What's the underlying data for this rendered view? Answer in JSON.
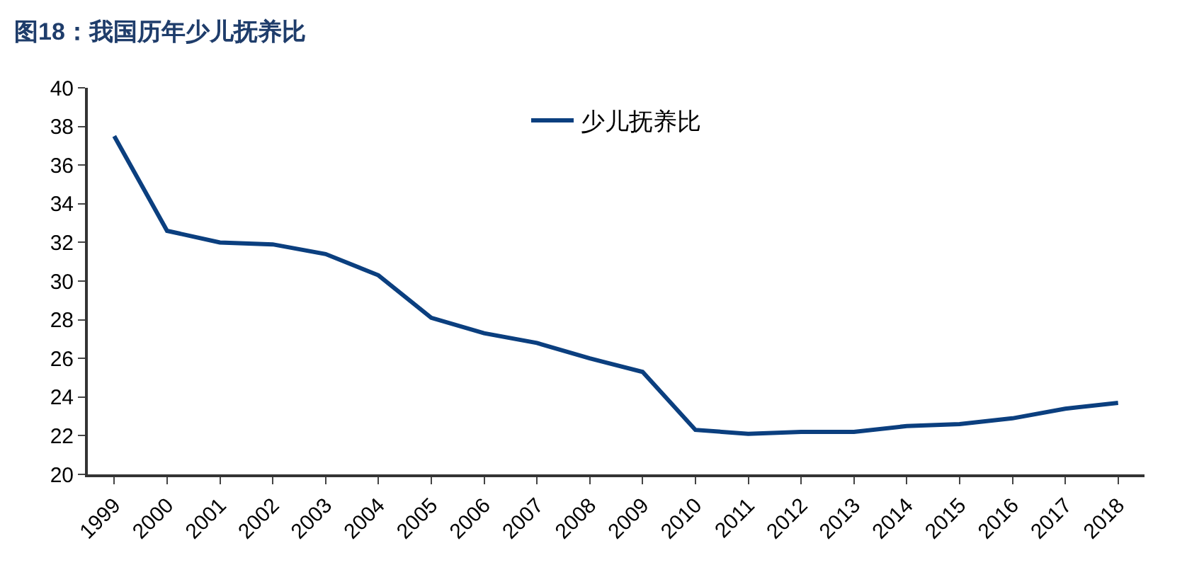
{
  "chart_data": {
    "type": "line",
    "title": "图18：我国历年少儿抚养比",
    "categories": [
      "1999",
      "2000",
      "2001",
      "2002",
      "2003",
      "2004",
      "2005",
      "2006",
      "2007",
      "2008",
      "2009",
      "2010",
      "2011",
      "2012",
      "2013",
      "2014",
      "2015",
      "2016",
      "2017",
      "2018"
    ],
    "series": [
      {
        "name": "少儿抚养比",
        "color": "#0b3f7f",
        "values": [
          37.5,
          32.6,
          32.0,
          31.9,
          31.4,
          30.3,
          28.1,
          27.3,
          26.8,
          26.0,
          25.3,
          22.3,
          22.1,
          22.2,
          22.2,
          22.5,
          22.6,
          22.9,
          23.4,
          23.7
        ]
      }
    ],
    "ylim": [
      20,
      40
    ],
    "yticks": [
      20,
      22,
      24,
      26,
      28,
      30,
      32,
      34,
      36,
      38,
      40
    ],
    "legend": "top",
    "marker": "none",
    "line_style": "solid"
  }
}
